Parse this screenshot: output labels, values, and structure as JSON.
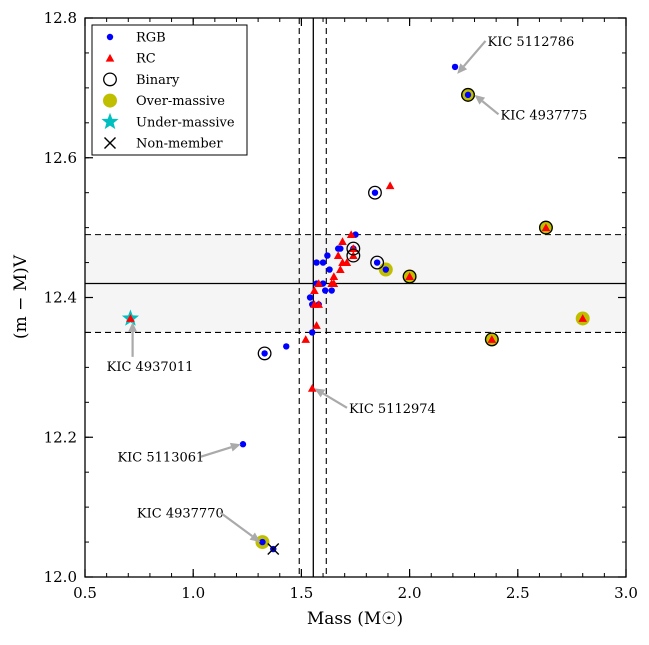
{
  "chart_data": {
    "type": "scatter",
    "xlabel": "Mass (M☉)",
    "ylabel": "(m − M)V",
    "xlim": [
      0.5,
      3.0
    ],
    "ylim": [
      12.0,
      12.8
    ],
    "x_ticks": [
      "0.5",
      "1.0",
      "1.5",
      "2.0",
      "2.5",
      "3.0"
    ],
    "x_tick_values": [
      0.5,
      1.0,
      1.5,
      2.0,
      2.5,
      3.0
    ],
    "y_ticks": [
      "12.0",
      "12.2",
      "12.4",
      "12.6",
      "12.8"
    ],
    "y_tick_values": [
      12.0,
      12.2,
      12.4,
      12.6,
      12.8
    ],
    "reference_lines": {
      "mass_mean": 1.555,
      "mass_band": [
        1.49,
        1.615
      ],
      "modulus_mean": 12.42,
      "modulus_band": [
        12.35,
        12.49
      ]
    },
    "legend": {
      "placement": "top-left",
      "entries": [
        {
          "key": "rgb",
          "label": "RGB",
          "marker": "dot",
          "color": "#0000ff"
        },
        {
          "key": "rc",
          "label": "RC",
          "marker": "triangle",
          "color": "#ff0000"
        },
        {
          "key": "binary",
          "label": "Binary",
          "marker": "open-circle",
          "color": "#000000"
        },
        {
          "key": "over",
          "label": "Over-massive",
          "marker": "filled-circle",
          "color": "#bfbf00"
        },
        {
          "key": "under",
          "label": "Under-massive",
          "marker": "star",
          "color": "#00bfbf"
        },
        {
          "key": "nonmember",
          "label": "Non-member",
          "marker": "x",
          "color": "#000000"
        }
      ]
    },
    "series": [
      {
        "name": "Over-massive",
        "marker": "filled-circle",
        "color": "#bfbf00",
        "points": [
          [
            2.27,
            12.69
          ],
          [
            2.63,
            12.5
          ],
          [
            1.89,
            12.44
          ],
          [
            2.0,
            12.43
          ],
          [
            2.38,
            12.34
          ],
          [
            2.8,
            12.37
          ],
          [
            1.32,
            12.05
          ]
        ]
      },
      {
        "name": "Under-massive",
        "marker": "star",
        "color": "#00bfbf",
        "points": [
          [
            0.71,
            12.37
          ]
        ]
      },
      {
        "name": "RGB",
        "marker": "dot",
        "color": "#0000ff",
        "points": [
          [
            2.21,
            12.73
          ],
          [
            2.27,
            12.69
          ],
          [
            1.84,
            12.55
          ],
          [
            1.75,
            12.49
          ],
          [
            1.74,
            12.47
          ],
          [
            1.67,
            12.47
          ],
          [
            1.68,
            12.47
          ],
          [
            1.62,
            12.46
          ],
          [
            1.57,
            12.45
          ],
          [
            1.6,
            12.45
          ],
          [
            1.63,
            12.44
          ],
          [
            1.85,
            12.45
          ],
          [
            1.89,
            12.44
          ],
          [
            1.57,
            12.42
          ],
          [
            1.6,
            12.42
          ],
          [
            1.58,
            12.39
          ],
          [
            1.61,
            12.41
          ],
          [
            1.64,
            12.41
          ],
          [
            1.54,
            12.4
          ],
          [
            1.55,
            12.39
          ],
          [
            1.55,
            12.35
          ],
          [
            1.43,
            12.33
          ],
          [
            1.33,
            12.32
          ],
          [
            1.23,
            12.19
          ],
          [
            1.32,
            12.05
          ],
          [
            1.37,
            12.04
          ]
        ]
      },
      {
        "name": "RC",
        "marker": "triangle",
        "color": "#ff0000",
        "points": [
          [
            1.91,
            12.56
          ],
          [
            2.63,
            12.5
          ],
          [
            1.73,
            12.49
          ],
          [
            1.69,
            12.48
          ],
          [
            1.74,
            12.47
          ],
          [
            1.74,
            12.46
          ],
          [
            1.67,
            12.46
          ],
          [
            1.69,
            12.45
          ],
          [
            1.71,
            12.45
          ],
          [
            1.68,
            12.44
          ],
          [
            1.65,
            12.43
          ],
          [
            1.64,
            12.42
          ],
          [
            1.65,
            12.42
          ],
          [
            1.58,
            12.42
          ],
          [
            1.56,
            12.41
          ],
          [
            1.58,
            12.39
          ],
          [
            1.56,
            12.39
          ],
          [
            1.57,
            12.36
          ],
          [
            1.52,
            12.34
          ],
          [
            1.55,
            12.27
          ],
          [
            2.0,
            12.43
          ],
          [
            2.38,
            12.34
          ],
          [
            2.8,
            12.37
          ],
          [
            0.71,
            12.37
          ]
        ]
      },
      {
        "name": "Binary",
        "marker": "open-circle",
        "color": "#000000",
        "points": [
          [
            2.27,
            12.69
          ],
          [
            1.84,
            12.55
          ],
          [
            2.63,
            12.5
          ],
          [
            1.74,
            12.47
          ],
          [
            1.74,
            12.46
          ],
          [
            1.85,
            12.45
          ],
          [
            2.0,
            12.43
          ],
          [
            2.38,
            12.34
          ],
          [
            1.33,
            12.32
          ]
        ]
      },
      {
        "name": "Non-member",
        "marker": "x",
        "color": "#000000",
        "points": [
          [
            1.37,
            12.04
          ]
        ]
      }
    ],
    "annotations": [
      {
        "text": "KIC 5112786",
        "point": [
          2.22,
          12.72
        ],
        "text_pos": [
          2.36,
          12.76
        ]
      },
      {
        "text": "KIC 4937775",
        "point": [
          2.3,
          12.69
        ],
        "text_pos": [
          2.42,
          12.655
        ]
      },
      {
        "text": "KIC 4937011",
        "point": [
          0.72,
          12.365
        ],
        "text_pos": [
          0.6,
          12.295
        ]
      },
      {
        "text": "KIC 5112974",
        "point": [
          1.56,
          12.27
        ],
        "text_pos": [
          1.72,
          12.235
        ]
      },
      {
        "text": "KIC 5113061",
        "point": [
          1.22,
          12.19
        ],
        "text_pos": [
          0.65,
          12.165
        ]
      },
      {
        "text": "KIC 4937770",
        "point": [
          1.31,
          12.05
        ],
        "text_pos": [
          0.74,
          12.085
        ]
      }
    ]
  }
}
